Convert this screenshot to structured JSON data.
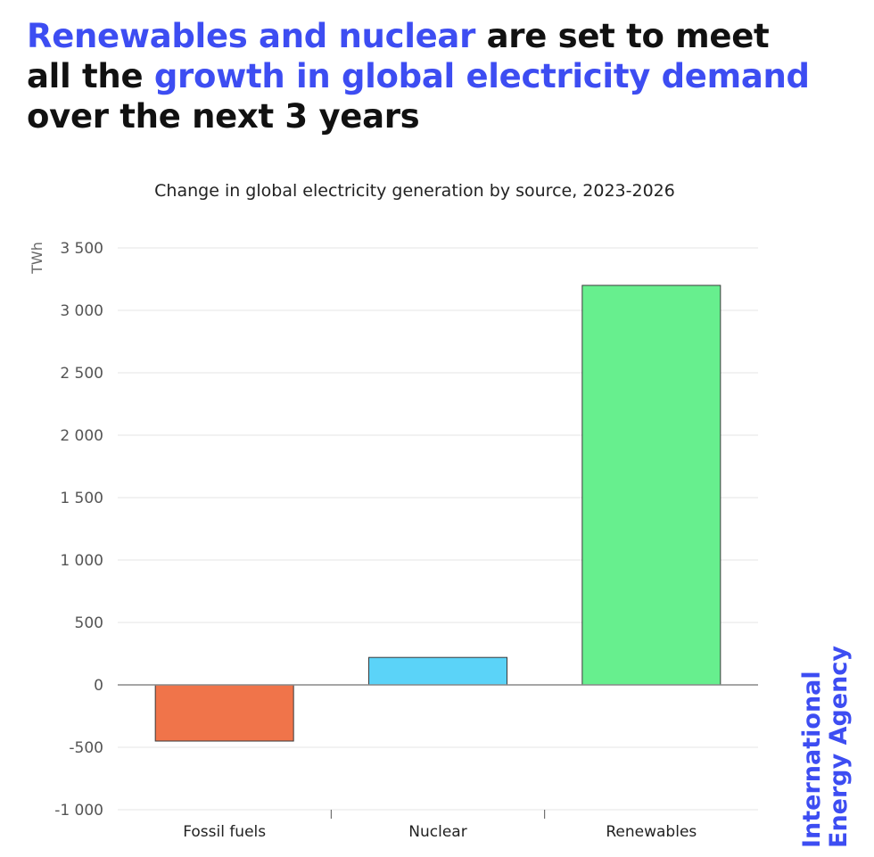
{
  "headline": {
    "part1": "Renewables and nuclear",
    "part2": " are set to meet all the ",
    "part3": "growth in global electricity demand",
    "part4": " over the next 3 years"
  },
  "brand": {
    "line1": "International",
    "line2": "Energy Agency"
  },
  "colors": {
    "accent": "#3d4df2",
    "fossil": "#f0744a",
    "nuclear": "#5bd3f8",
    "renewables": "#67ef8e"
  },
  "chart_data": {
    "type": "bar",
    "title": "Change in global electricity generation by source, 2023-2026",
    "ylabel": "TWh",
    "xlabel": "",
    "categories": [
      "Fossil fuels",
      "Nuclear",
      "Renewables"
    ],
    "values": [
      -450,
      220,
      3200
    ],
    "bar_colors": [
      "#f0744a",
      "#5bd3f8",
      "#67ef8e"
    ],
    "ylim": [
      -1000,
      3500
    ],
    "yticks": [
      -1000,
      -500,
      0,
      500,
      1000,
      1500,
      2000,
      2500,
      3000,
      3500
    ],
    "ytick_labels": [
      "-1 000",
      "-500",
      "0",
      "500",
      "1 000",
      "1 500",
      "2 000",
      "2 500",
      "3 000",
      "3 500"
    ],
    "grid": true
  }
}
